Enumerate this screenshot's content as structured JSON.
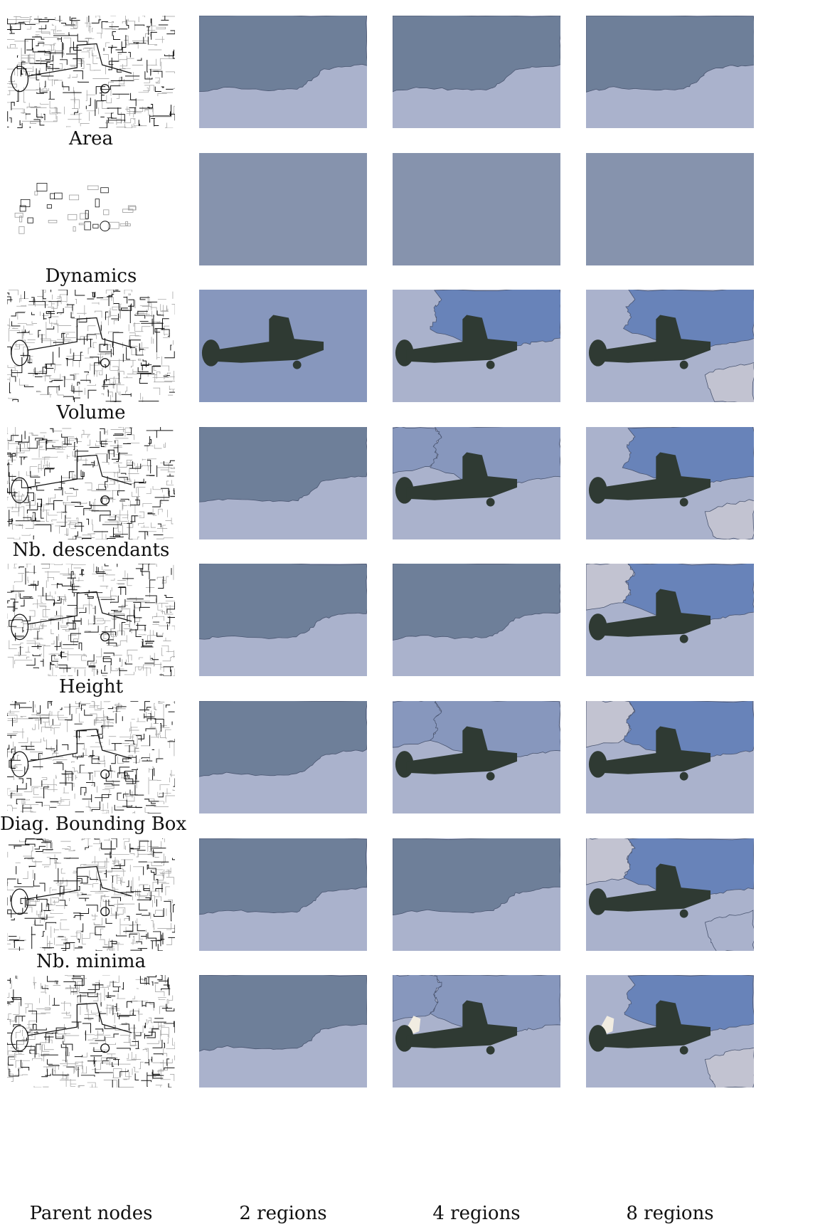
{
  "figure": {
    "columns": [
      "Parent nodes",
      "2 regions",
      "4 regions",
      "8 regions"
    ],
    "rows": [
      {
        "id": "area",
        "label": "Area",
        "variant": "dense",
        "r2": "A",
        "r4": "A",
        "r8": "A"
      },
      {
        "id": "dynamics",
        "label": "Dynamics",
        "variant": "sparse",
        "r2": "flat",
        "r4": "flat",
        "r8": "flat"
      },
      {
        "id": "volume",
        "label": "Volume",
        "variant": "dense",
        "r2": "plane",
        "r4": "B",
        "r8": "C"
      },
      {
        "id": "nb-descendants",
        "label": "Nb. descendants",
        "variant": "dense",
        "r2": "A",
        "r4": "D",
        "r8": "E"
      },
      {
        "id": "height",
        "label": "Height",
        "variant": "dense",
        "r2": "A",
        "r4": "A",
        "r8": "F"
      },
      {
        "id": "diag-bounding-box",
        "label": "Diag. Bounding Box",
        "variant": "dense",
        "r2": "A",
        "r4": "G",
        "r8": "H"
      },
      {
        "id": "nb-minima",
        "label": "Nb. minima",
        "variant": "dense",
        "r2": "A",
        "r4": "A",
        "r8": "I"
      },
      {
        "id": "parent-nodes",
        "label": "",
        "variant": "dense",
        "r2": "A",
        "r4": "J",
        "r8": "K"
      }
    ],
    "colors": {
      "plane": "#2f3a33",
      "slate": "#6e7f99",
      "lavender": "#aab2cc",
      "blue": "#6883b9",
      "grey_light": "#c2c3d1",
      "medium": "#8797bd",
      "flat": "#8693ad",
      "cream": "#f1ece1"
    }
  }
}
